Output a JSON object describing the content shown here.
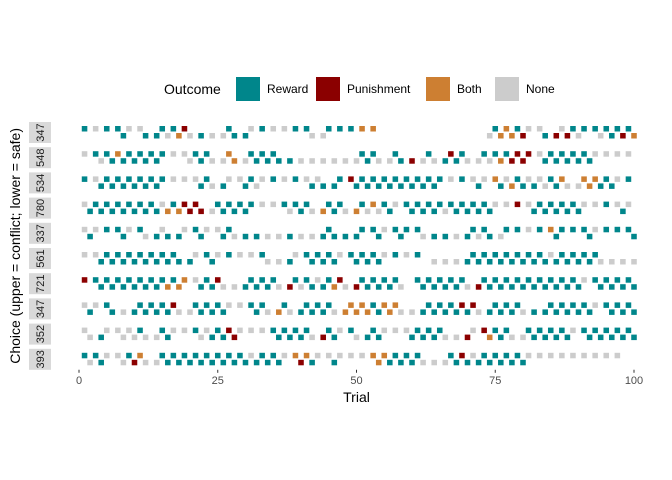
{
  "chart_data": {
    "type": "heatmap",
    "title": "",
    "xlabel": "Trial",
    "ylabel": "Choice (upper = conflict; lower = safe)",
    "xlim": [
      0,
      100
    ],
    "x_ticks": [
      0,
      25,
      50,
      75,
      100
    ],
    "grid": false,
    "legend_title": "Outcome",
    "legend_position": "top",
    "categories": [
      {
        "key": "R",
        "label": "Reward",
        "color": "#00868B"
      },
      {
        "key": "P",
        "label": "Punishment",
        "color": "#8B0000"
      },
      {
        "key": "B",
        "label": "Both",
        "color": "#CD7F32"
      },
      {
        "key": "N",
        "label": "None",
        "color": "#CCCCCC"
      }
    ],
    "participants": [
      {
        "id": "347",
        "trials": "R.N.R.RRN.NR.RRNRBPN.R.N.NRR.RN.R.N.N.R.RN.NR.R.R.B.B....................NRBBBRPN.NR.PNPRNR.RNRRRPRBPRNBPNPR.R"
      },
      {
        "id": "548",
        "trials": "N.RNRRBRRRRRRRR.N.NNRRRN.NBB.NRRRRRR.R.N.N.N.N.N.NRRRN.NRR.P.NRN.RPRRN.NRNRBRPPPP.NRRRRRRRRRN.N.N.N.N.NRBNR.N.NNR.NRR.R"
      },
      {
        "id": "534",
        "trials": "R.NRRRRRRRRRRRR.N.N.NRRN.RN.NRRNN.R.N.R.NRNR.RR.PRRRRRRRRRRRRRRRR.N.R.NRN.BRNBRRNRNNRRBN.NBBBRRRN.R.B"
      },
      {
        "id": "780",
        "trials": "NRRRRRRRRRRRRRNBRBPPPP.NRRRRRRR.N.N.RNRRRN.BRRRN.BRNBNRRN.RRRRRRRNRRRRRRRRN.N.P.NRRRRRRRRRN.N.R.NRN.NRN"
      },
      {
        "id": "337",
        "trials": "NRN.R.RRN.RN.RNR.RN.RRN.NRRN.R.R.N.N.R.N.N.RRR.R.RR.RRN.RRR.RN.R.R.N.RRNRR.NR.R.N.R.BRR.R.RRN.R.R.RRRRR.N.R.N"
      },
      {
        "id": "561",
        "trials": "N.NRRRRRRRRRRRRRRR.RN.RRN.R.N.N.RN.N.RN.RRRRRRN.RRRRRRN.R.N.R..N.N.N.RRRRRRRRRRRRRRRNRRRRRRRRN.N.N.N.N.NR.P"
      },
      {
        "id": "721",
        "trials": "P.RRRRRRRRRRRRRBRBB.NRRRPN.N.RRRRRRN.PRNRRNRRBPN.PRRRRRRRN..RRRRRRRRRN.PRRRRRRRRRRRRRRRRRRN.RRRRRRRRPN.N.P"
      },
      {
        "id": "347",
        "trials": "NRN.RR.N.RRRRRRRPN.NRRRRRRN.N.RRRN.BRN.RRRRRRN.BBBBBRRBBBN.N.RRRRRRRPRPN.RRRRRRN.R.RRRRRRRRRN.RRRRRRRRN.N"
      },
      {
        "id": "352",
        "trials": "NN.RN.NNNNRN.NRRN.N.RNNRRRPPN.N.N.RRRRRRRN.PRRN.RN.RRRN.N.NRRRRRRN.N.PN.PBRRRN.NRRRRRRRRN.RRRRRRRRRRN.N.N"
      },
      {
        "id": "393",
        "trials": "RNRRN.NNRPBN.NRRRRRRRRRRRRRRRRNRRRRRN.BPBRN.NRN.N.N.BBBRRRRRRN.N.NRRPRNRRRRRRRRRN.N.N.N.N.N.N.N.N"
      }
    ]
  }
}
